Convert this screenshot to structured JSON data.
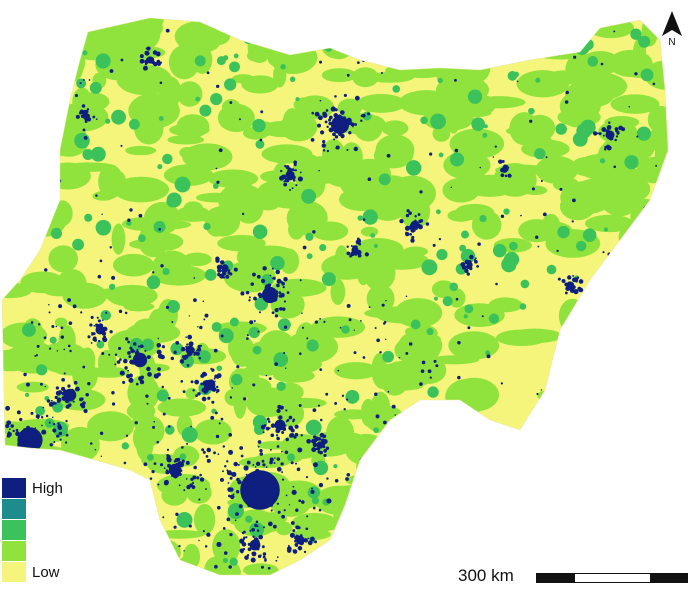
{
  "legend": {
    "high_label": "High",
    "low_label": "Low",
    "colors": [
      "#0f1f80",
      "#1e8c8c",
      "#3cc25a",
      "#8fe33c",
      "#f4f57a"
    ]
  },
  "scale": {
    "label": "300 km"
  },
  "north": {
    "label": "N"
  },
  "map_colors": {
    "base": "#f4f57a",
    "low_mid": "#8fe33c",
    "mid": "#3cc25a",
    "high": "#0f1f80"
  }
}
